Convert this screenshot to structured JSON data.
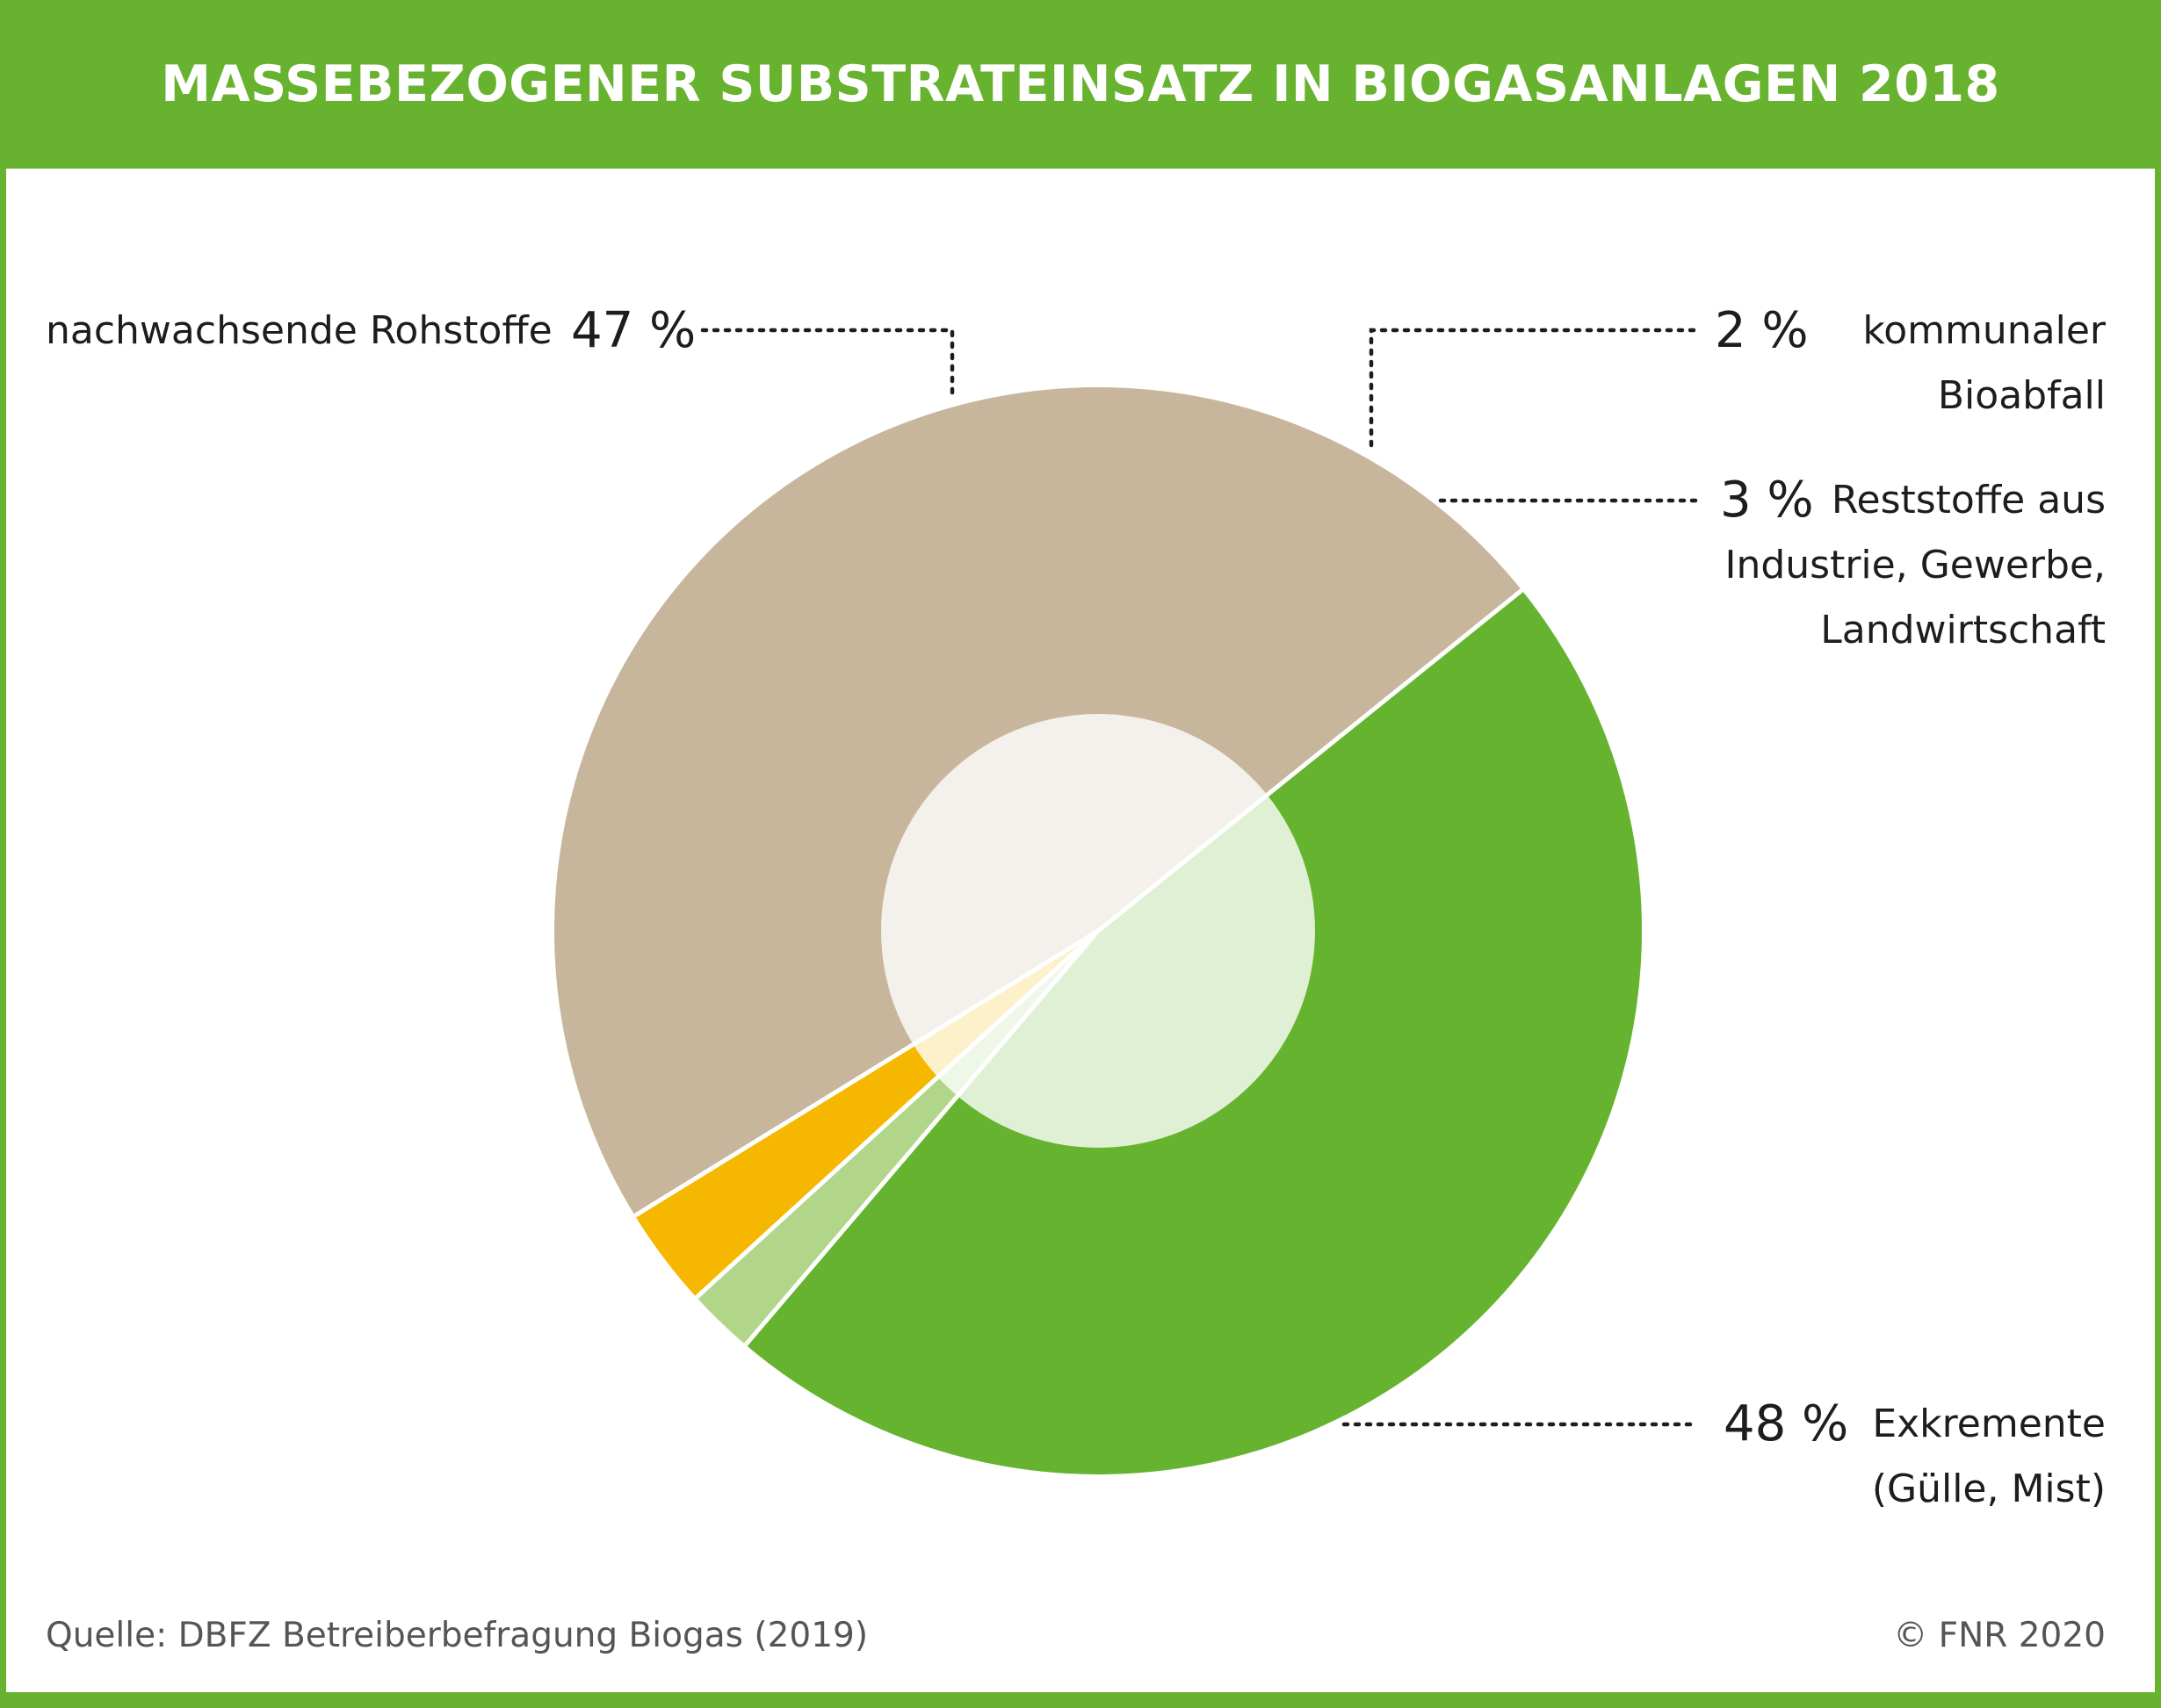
{
  "title": "MASSEBEZOGENER SUBSTRATEINSATZ IN BIOGASANLAGEN 2018",
  "colors": {
    "brand": "#67b22e",
    "nachwachsende": "#65b32e",
    "kommunal": "#b1d68a",
    "reststoffe": "#f6b700",
    "exkremente": "#c8b69c"
  },
  "labels": {
    "nawaro_name": "nachwachsende Rohstoffe",
    "nawaro_pct": "47 %",
    "kommunal_pct": "2 %",
    "kommunal_line1": "kommunaler",
    "kommunal_line2": "Bioabfall",
    "reststoffe_pct": "3 %",
    "reststoffe_line1": "Reststoffe aus",
    "reststoffe_line2": "Industrie, Gewerbe,",
    "reststoffe_line3": "Landwirtschaft",
    "exkremente_pct": "48 %",
    "exkremente_line1": "Exkremente",
    "exkremente_line2": "(Gülle, Mist)"
  },
  "footer": {
    "source": "Quelle: DBFZ Betreiberbefragung Biogas (2019)",
    "copyright": "© FNR 2020"
  },
  "chart_data": {
    "type": "pie",
    "title": "MASSEBEZOGENER SUBSTRATEINSATZ IN BIOGASANLAGEN 2018",
    "unit": "%",
    "slices": [
      {
        "label": "nachwachsende Rohstoffe",
        "value": 47,
        "color": "#65b32e"
      },
      {
        "label": "kommunaler Bioabfall",
        "value": 2,
        "color": "#b1d68a"
      },
      {
        "label": "Reststoffe aus Industrie, Gewerbe, Landwirtschaft",
        "value": 3,
        "color": "#f6b700"
      },
      {
        "label": "Exkremente (Gülle, Mist)",
        "value": 48,
        "color": "#c8b69c"
      }
    ]
  }
}
